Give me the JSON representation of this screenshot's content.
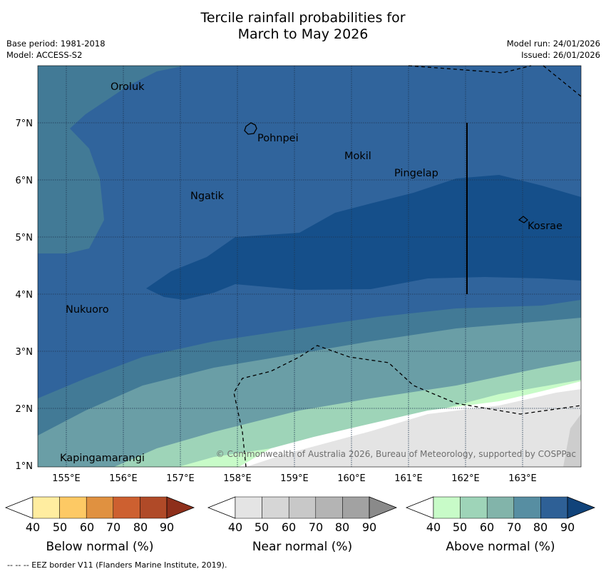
{
  "title": {
    "line1": "Tercile rainfall probabilities for",
    "line2": "March to May 2026"
  },
  "meta": {
    "base_period": "Base period: 1981-2018",
    "model": "Model: ACCESS-S2",
    "model_run": "Model run: 24/01/2026",
    "issued": "Issued: 26/01/2026"
  },
  "map": {
    "lon_ticks": [
      "155°E",
      "156°E",
      "157°E",
      "158°E",
      "159°E",
      "160°E",
      "161°E",
      "162°E",
      "163°E"
    ],
    "lat_ticks": [
      "7°N",
      "6°N",
      "5°N",
      "4°N",
      "3°N",
      "2°N",
      "1°N"
    ],
    "places": [
      "Oroluk",
      "Pohnpei",
      "Mokil",
      "Pingelap",
      "Ngatik",
      "Kosrae",
      "Nukuoro",
      "Kapingamarangi"
    ],
    "copyright": "© Commonwealth of Australia 2026, Bureau of Meteorology, supported by COSPPac"
  },
  "legend": {
    "below": {
      "label": "Below normal (%)",
      "colors": [
        "#ffffff",
        "#ffeda0",
        "#fdc964",
        "#e09140",
        "#cd6030",
        "#b04a28",
        "#8e2f1b"
      ]
    },
    "near": {
      "label": "Near normal (%)",
      "colors": [
        "#ffffff",
        "#e4e4e4",
        "#d6d6d6",
        "#c8c8c8",
        "#b4b4b4",
        "#a2a2a2",
        "#8a8a8a"
      ]
    },
    "above": {
      "label": "Above normal (%)",
      "colors": [
        "#ffffff",
        "#c8fbc8",
        "#9ed4b8",
        "#82b4aa",
        "#578ea2",
        "#2e6096",
        "#10437a"
      ]
    },
    "ticks": [
      "40",
      "50",
      "60",
      "70",
      "80",
      "90"
    ]
  },
  "footnote": "--  --  -- EEZ border V11 (Flanders Marine Institute, 2019)."
}
